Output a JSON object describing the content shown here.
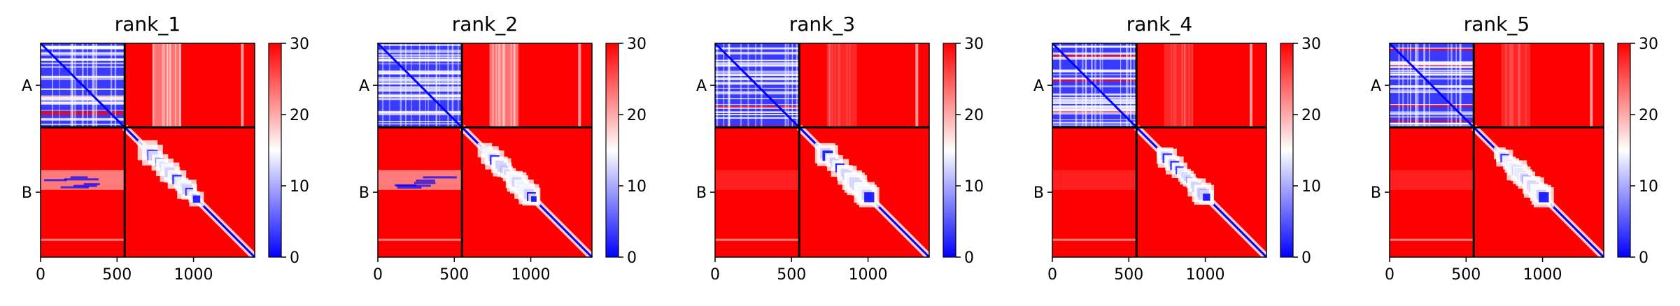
{
  "chart_data": [
    {
      "type": "heatmap",
      "title": "rank_1",
      "xticks": [
        0,
        500,
        1000
      ],
      "yticks": [
        "A",
        "B"
      ],
      "xlim": [
        0,
        1400
      ],
      "chain_boundary": 550,
      "colorbar": {
        "min": 0,
        "max": 30,
        "ticks": [
          0,
          10,
          20,
          30
        ],
        "colormap": "bwr"
      }
    },
    {
      "type": "heatmap",
      "title": "rank_2",
      "xticks": [
        0,
        500,
        1000
      ],
      "yticks": [
        "A",
        "B"
      ],
      "xlim": [
        0,
        1400
      ],
      "chain_boundary": 550,
      "colorbar": {
        "min": 0,
        "max": 30,
        "ticks": [
          0,
          10,
          20,
          30
        ],
        "colormap": "bwr"
      }
    },
    {
      "type": "heatmap",
      "title": "rank_3",
      "xticks": [
        0,
        500,
        1000
      ],
      "yticks": [
        "A",
        "B"
      ],
      "xlim": [
        0,
        1400
      ],
      "chain_boundary": 550,
      "colorbar": {
        "min": 0,
        "max": 30,
        "ticks": [
          0,
          10,
          20,
          30
        ],
        "colormap": "bwr"
      }
    },
    {
      "type": "heatmap",
      "title": "rank_4",
      "xticks": [
        0,
        500,
        1000
      ],
      "yticks": [
        "A",
        "B"
      ],
      "xlim": [
        0,
        1400
      ],
      "chain_boundary": 550,
      "colorbar": {
        "min": 0,
        "max": 30,
        "ticks": [
          0,
          10,
          20,
          30
        ],
        "colormap": "bwr"
      }
    },
    {
      "type": "heatmap",
      "title": "rank_5",
      "xticks": [
        0,
        500,
        1000
      ],
      "yticks": [
        "A",
        "B"
      ],
      "xlim": [
        0,
        1400
      ],
      "chain_boundary": 550,
      "colorbar": {
        "min": 0,
        "max": 30,
        "ticks": [
          0,
          10,
          20,
          30
        ],
        "colormap": "bwr"
      }
    }
  ],
  "colors": {
    "low": "#0000ff",
    "mid": "#ffffff",
    "high": "#ff0000"
  }
}
